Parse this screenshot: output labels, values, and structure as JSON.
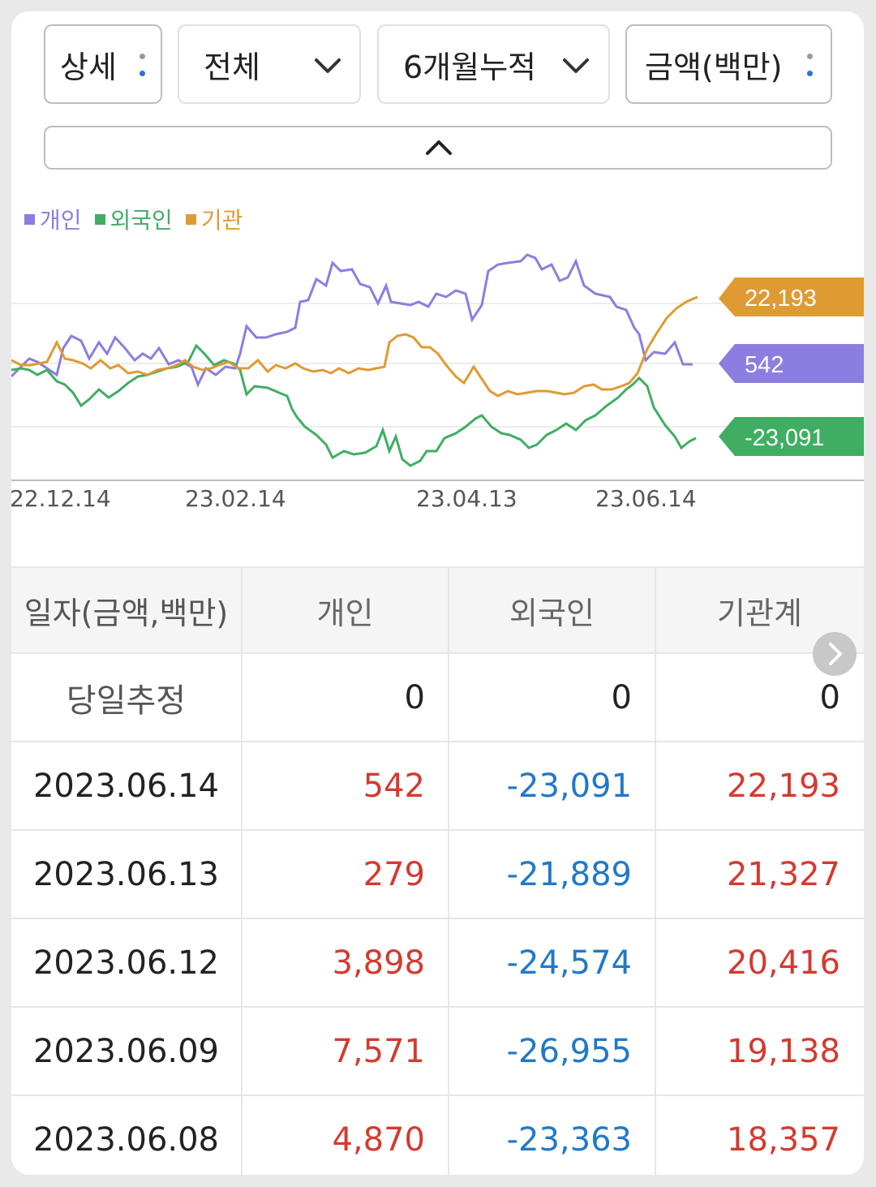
{
  "filters": {
    "detail": "상세",
    "scope": "전체",
    "period": "6개월누적",
    "unit": "금액(백만)"
  },
  "legend": [
    {
      "name": "개인",
      "color": "#8b7ee0"
    },
    {
      "name": "외국인",
      "color": "#3fae63"
    },
    {
      "name": "기관",
      "color": "#e09a33"
    }
  ],
  "chart_data": {
    "type": "line",
    "x": [
      "22.12.14",
      "23.02.14",
      "23.04.13",
      "23.06.14"
    ],
    "series": [
      {
        "name": "개인",
        "color": "#8b7ee0",
        "last_label": "542"
      },
      {
        "name": "외국인",
        "color": "#3fae63",
        "last_label": "-23,091"
      },
      {
        "name": "기관",
        "color": "#e09a33",
        "last_label": "22,193"
      }
    ]
  },
  "table": {
    "headers": [
      "일자(금액,백만)",
      "개인",
      "외국인",
      "기관계"
    ],
    "today": {
      "label": "당일추정",
      "values": [
        "0",
        "0",
        "0"
      ]
    },
    "rows": [
      {
        "date": "2023.06.14",
        "values": [
          "542",
          "-23,091",
          "22,193"
        ]
      },
      {
        "date": "2023.06.13",
        "values": [
          "279",
          "-21,889",
          "21,327"
        ]
      },
      {
        "date": "2023.06.12",
        "values": [
          "3,898",
          "-24,574",
          "20,416"
        ]
      },
      {
        "date": "2023.06.09",
        "values": [
          "7,571",
          "-26,955",
          "19,138"
        ]
      },
      {
        "date": "2023.06.08",
        "values": [
          "4,870",
          "-23,363",
          "18,357"
        ]
      }
    ]
  }
}
